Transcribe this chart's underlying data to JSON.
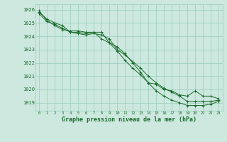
{
  "background_color": "#cce8df",
  "grid_color": "#99ccbb",
  "line_color": "#1a6b2a",
  "marker_color": "#1a6b2a",
  "xlabel": "Graphe pression niveau de la mer (hPa)",
  "xlabel_fontsize": 6.0,
  "ylim": [
    1018.4,
    1026.4
  ],
  "xlim": [
    -0.5,
    23.5
  ],
  "yticks": [
    1019,
    1020,
    1021,
    1022,
    1023,
    1024,
    1025,
    1026
  ],
  "xticks": [
    0,
    1,
    2,
    3,
    4,
    5,
    6,
    7,
    8,
    9,
    10,
    11,
    12,
    13,
    14,
    15,
    16,
    17,
    18,
    19,
    20,
    21,
    22,
    23
  ],
  "series": [
    [
      1025.8,
      1025.3,
      1025.0,
      1024.8,
      1024.3,
      1024.2,
      1024.1,
      1024.2,
      1024.1,
      1023.8,
      1023.0,
      1022.6,
      1022.1,
      1021.6,
      1021.0,
      1020.5,
      1020.1,
      1019.8,
      1019.5,
      1019.1,
      1019.1,
      1019.1,
      1019.1,
      1019.2
    ],
    [
      1025.9,
      1025.2,
      1024.8,
      1024.5,
      1024.4,
      1024.4,
      1024.3,
      1024.3,
      1024.3,
      1023.5,
      1022.9,
      1022.2,
      1021.6,
      1021.1,
      1020.5,
      1019.9,
      1019.5,
      1019.2,
      1019.0,
      1018.8,
      1018.8,
      1018.8,
      1018.9,
      1019.1
    ],
    [
      1025.7,
      1025.1,
      1024.9,
      1024.6,
      1024.3,
      1024.3,
      1024.2,
      1024.3,
      1023.8,
      1023.5,
      1023.2,
      1022.7,
      1022.0,
      1021.3,
      1020.5,
      1020.4,
      1020.0,
      1019.9,
      1019.6,
      1019.5,
      1019.9,
      1019.5,
      1019.5,
      1019.3
    ]
  ]
}
